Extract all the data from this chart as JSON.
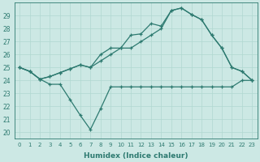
{
  "xlabel": "Humidex (Indice chaleur)",
  "bg_color": "#cce8e4",
  "line_color": "#2d7a70",
  "grid_color": "#b0d8d0",
  "xlim": [
    -0.5,
    23.5
  ],
  "ylim": [
    19.5,
    30.0
  ],
  "yticks": [
    20,
    21,
    22,
    23,
    24,
    25,
    26,
    27,
    28,
    29
  ],
  "xticks": [
    0,
    1,
    2,
    3,
    4,
    5,
    6,
    7,
    8,
    9,
    10,
    11,
    12,
    13,
    14,
    15,
    16,
    17,
    18,
    19,
    20,
    21,
    22,
    23
  ],
  "line1_x": [
    0,
    1,
    2,
    3,
    4,
    5,
    6,
    7,
    8,
    9,
    10,
    11,
    12,
    13,
    14,
    15,
    16,
    17,
    18,
    19,
    20,
    21,
    22,
    23
  ],
  "line1_y": [
    25.0,
    24.7,
    24.1,
    23.7,
    23.7,
    22.5,
    21.3,
    20.2,
    21.8,
    23.5,
    23.5,
    23.5,
    23.5,
    23.5,
    23.5,
    23.5,
    23.5,
    23.5,
    23.5,
    23.5,
    23.5,
    23.5,
    24.0,
    24.0
  ],
  "line2_x": [
    0,
    1,
    2,
    3,
    4,
    5,
    6,
    7,
    8,
    9,
    10,
    11,
    12,
    13,
    14,
    15,
    16,
    17,
    18,
    19,
    20,
    21,
    22,
    23
  ],
  "line2_y": [
    25.0,
    24.7,
    24.1,
    24.3,
    24.6,
    24.9,
    25.2,
    25.0,
    25.5,
    26.0,
    26.5,
    27.5,
    27.6,
    28.4,
    28.2,
    29.4,
    29.6,
    29.1,
    28.7,
    27.5,
    26.5,
    25.0,
    24.7,
    24.0
  ],
  "line3_x": [
    0,
    1,
    2,
    3,
    4,
    5,
    6,
    7,
    8,
    9,
    10,
    11,
    12,
    13,
    14,
    15,
    16,
    17,
    18,
    19,
    20,
    21,
    22,
    23
  ],
  "line3_y": [
    25.0,
    24.7,
    24.1,
    24.3,
    24.6,
    24.9,
    25.2,
    25.0,
    26.0,
    26.5,
    26.5,
    26.5,
    27.0,
    27.5,
    28.0,
    29.4,
    29.6,
    29.1,
    28.7,
    27.5,
    26.5,
    25.0,
    24.7,
    24.0
  ]
}
